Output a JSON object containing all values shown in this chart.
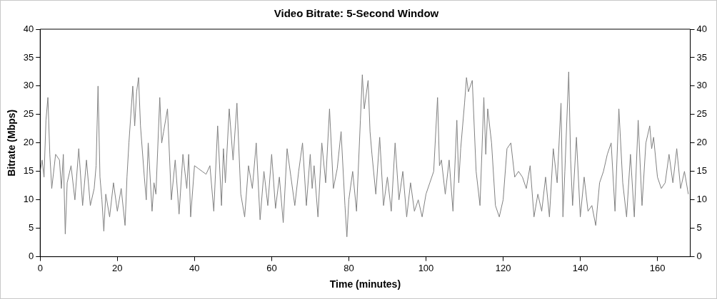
{
  "chart_data": {
    "type": "line",
    "title": "Video Bitrate: 5-Second Window",
    "xlabel": "Time (minutes)",
    "ylabel": "Bitrate (Mbps)",
    "xlim": [
      0,
      168.5
    ],
    "xticks": [
      0,
      20,
      40,
      60,
      80,
      100,
      120,
      140,
      160
    ],
    "ylim": [
      0,
      40
    ],
    "yticks": [
      0,
      5,
      10,
      15,
      20,
      25,
      30,
      35,
      40
    ],
    "y2lim": [
      0,
      40
    ],
    "y2ticks": [
      0,
      5,
      10,
      15,
      20,
      25,
      30,
      35,
      40
    ],
    "grid": false,
    "legend": false,
    "marker": "none",
    "line_style": "solid",
    "series": [
      {
        "color": "#808080",
        "x": [
          0,
          0.5,
          1,
          1.5,
          2,
          2.5,
          3,
          4,
          5,
          5.5,
          6,
          6.5,
          7,
          8,
          9,
          10,
          11,
          12,
          13,
          14,
          14.5,
          15,
          15.5,
          16,
          16.5,
          17,
          18,
          19,
          20,
          21,
          22,
          22.5,
          23,
          24,
          24.5,
          25,
          25.5,
          26,
          27,
          27.5,
          28,
          29,
          29.5,
          30,
          31,
          31.5,
          32,
          33,
          34,
          35,
          36,
          37,
          38,
          38.5,
          39,
          40,
          41,
          42,
          43,
          44,
          45,
          46,
          47,
          47.5,
          48,
          49,
          50,
          51,
          52,
          53,
          54,
          55,
          56,
          57,
          58,
          59,
          60,
          61,
          62,
          63,
          64,
          65,
          66,
          67,
          68,
          69,
          70,
          70.5,
          71,
          72,
          73,
          74,
          75,
          76,
          77,
          78,
          79,
          79.5,
          80,
          81,
          82,
          83,
          83.5,
          84,
          85,
          85.5,
          86,
          87,
          88,
          89,
          90,
          91,
          92,
          93,
          94,
          95,
          96,
          97,
          98,
          99,
          100,
          101,
          102,
          103,
          103.5,
          104,
          105,
          106,
          107,
          108,
          108.5,
          109,
          110,
          110.5,
          111,
          112,
          113,
          114,
          115,
          115.5,
          116,
          117,
          118,
          119,
          120,
          121,
          122,
          123,
          124,
          125,
          126,
          127,
          128,
          129,
          130,
          131,
          132,
          133,
          134,
          135,
          135.5,
          136,
          137,
          137.5,
          138,
          139,
          140,
          141,
          142,
          143,
          144,
          145,
          146,
          147,
          148,
          149,
          150,
          151,
          152,
          153,
          154,
          155,
          156,
          157,
          158,
          158.5,
          159,
          160,
          161,
          162,
          163,
          164,
          165,
          166,
          167,
          168
        ],
        "values": [
          15,
          17,
          14,
          24,
          28,
          18,
          12,
          18,
          17,
          12,
          18,
          4,
          13,
          16,
          10,
          19,
          9,
          17,
          9,
          12,
          16,
          30,
          14,
          10,
          4.5,
          11,
          7,
          13,
          8,
          12,
          5.5,
          14,
          20,
          30,
          23,
          29,
          31.5,
          23,
          14,
          10,
          20,
          8,
          13,
          11,
          28,
          20,
          22,
          26,
          10,
          17,
          7.5,
          18,
          12,
          18,
          7,
          16,
          15.5,
          15,
          14.5,
          16,
          8,
          23,
          9,
          19,
          13,
          26,
          17,
          27,
          11,
          7,
          16,
          12,
          20,
          6.5,
          15,
          9,
          18,
          8.5,
          14,
          6,
          19,
          14,
          9,
          15,
          20,
          9,
          18,
          12,
          16,
          7,
          20,
          13,
          26,
          12,
          15.5,
          22,
          9,
          3.5,
          10,
          15,
          8,
          24,
          32,
          26,
          31,
          22,
          18,
          11,
          21,
          9,
          14,
          8,
          20,
          10,
          15,
          7,
          13,
          8,
          10,
          7,
          11,
          13,
          15,
          28,
          16,
          17,
          11,
          17,
          8,
          24,
          13,
          19,
          27,
          31.5,
          29,
          31,
          15,
          9,
          28,
          18,
          26,
          20,
          9,
          7,
          10,
          19,
          20,
          14,
          15,
          14,
          12,
          16,
          7,
          11,
          8,
          14,
          7,
          19,
          13,
          27,
          7,
          15,
          32.5,
          17,
          9,
          21,
          7,
          14,
          8,
          9,
          5.5,
          13,
          15,
          18,
          20,
          8,
          26,
          13,
          7,
          18,
          7,
          24,
          9,
          20,
          23,
          19,
          21,
          14,
          12,
          13,
          18,
          13,
          19,
          12,
          15,
          11
        ]
      }
    ]
  }
}
